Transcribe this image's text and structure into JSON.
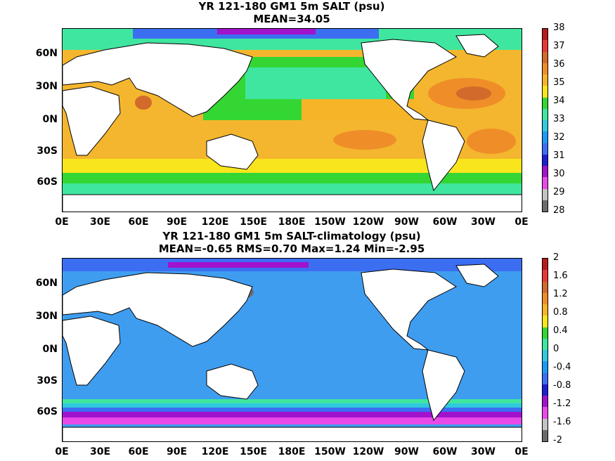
{
  "map1": {
    "title": "YR 121-180 GM1 5m SALT (psu)",
    "subtitle": "MEAN=34.05",
    "ocean_color": "#f4b62e",
    "colorbar": {
      "labels": [
        "38",
        "37",
        "36",
        "35",
        "34",
        "33",
        "32",
        "31",
        "30",
        "29",
        "28"
      ],
      "colors": [
        "#b71c1c",
        "#e53935",
        "#d2691e",
        "#ef8e28",
        "#f6c531",
        "#f7f41d",
        "#4bd633",
        "#56eaa4",
        "#3fd1e7",
        "#2299ee",
        "#3a7cf0",
        "#2d35c8",
        "#1a10c8",
        "#a60ac8",
        "#e844e8",
        "#c0c0c0",
        "#6a6a6a"
      ],
      "swatches": [
        "#b71c1c",
        "#e53935",
        "#d26a2c",
        "#ef8e28",
        "#f6b428",
        "#f8e51c",
        "#34d634",
        "#3fe69f",
        "#30c9dd",
        "#1a9af2",
        "#3c6ef2",
        "#1b1fd0",
        "#a012cc",
        "#e74ae6",
        "#c2c2c2",
        "#6b6b6b"
      ]
    }
  },
  "map2": {
    "title": "YR 121-180 GM1 5m SALT-climatology (psu)",
    "subtitle": "MEAN=-0.65   RMS=0.70   Max=1.24   Min=-2.95",
    "ocean_color": "#3f9df0",
    "colorbar": {
      "labels": [
        "2",
        "1.6",
        "1.2",
        "0.8",
        "0.4",
        "0",
        "-0.4",
        "-0.8",
        "-1.2",
        "-1.6",
        "-2"
      ],
      "swatches": [
        "#b71c1c",
        "#e53935",
        "#d26a2c",
        "#ef8e28",
        "#f6b428",
        "#f8e51c",
        "#34d634",
        "#3fe69f",
        "#30c9dd",
        "#1a9af2",
        "#3c6ef2",
        "#1b1fd0",
        "#a012cc",
        "#e74ae6",
        "#c2c2c2",
        "#6b6b6b"
      ]
    }
  },
  "axes": {
    "lat_labels": [
      "60N",
      "30N",
      "0N",
      "30S",
      "60S"
    ],
    "lon_labels": [
      "0E",
      "30E",
      "60E",
      "90E",
      "120E",
      "150E",
      "180E",
      "150W",
      "120W",
      "90W",
      "60W",
      "30W",
      "0E"
    ]
  }
}
